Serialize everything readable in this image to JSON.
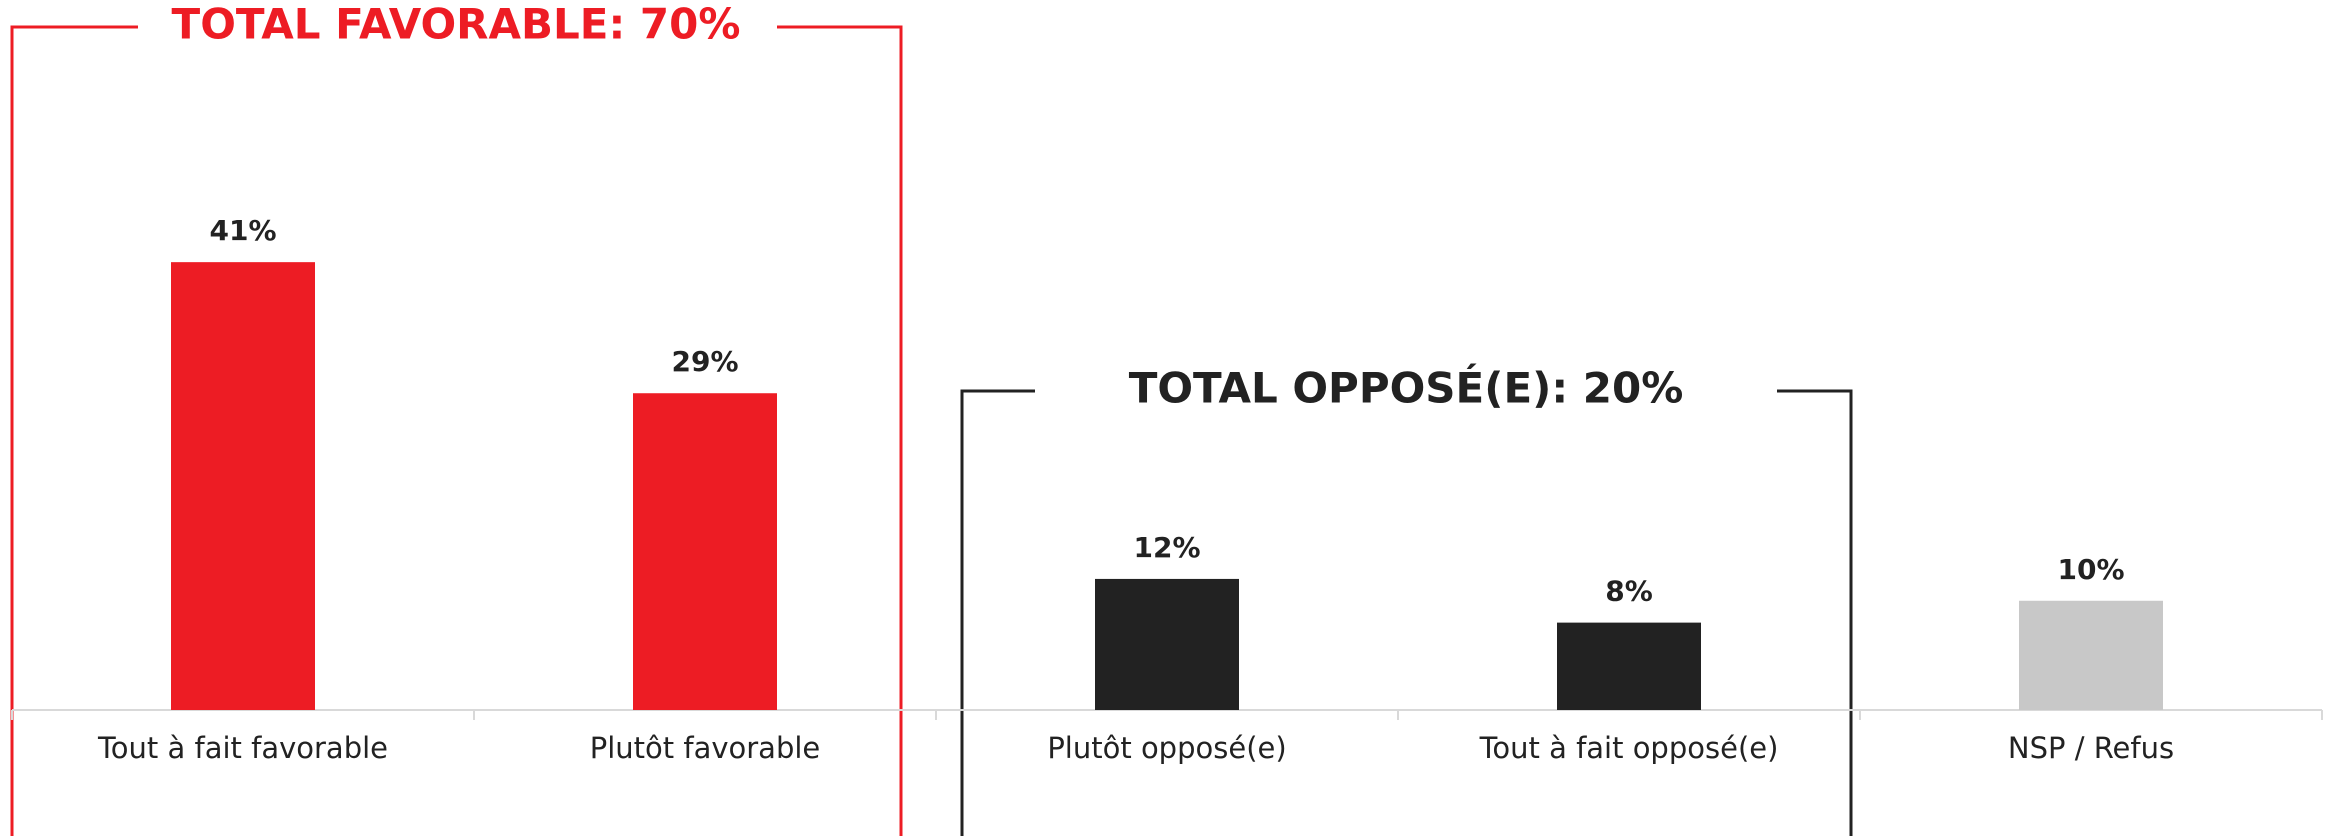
{
  "chart_data": {
    "type": "bar",
    "categories": [
      "Tout à fait favorable",
      "Plutôt favorable",
      "Plutôt opposé(e)",
      "Tout à fait opposé(e)",
      "NSP / Refus"
    ],
    "values": [
      41,
      29,
      12,
      8,
      10
    ],
    "value_labels": [
      "41%",
      "29%",
      "12%",
      "8%",
      "10%"
    ],
    "colors": [
      "#ED1C24",
      "#ED1C24",
      "#222222",
      "#222222",
      "#C8C8C8"
    ],
    "ylim": [
      0,
      65
    ],
    "annotations": [
      "TOTAL FAVORABLE: 70%",
      "TOTAL OPPOSÉ(E): 20%"
    ]
  }
}
